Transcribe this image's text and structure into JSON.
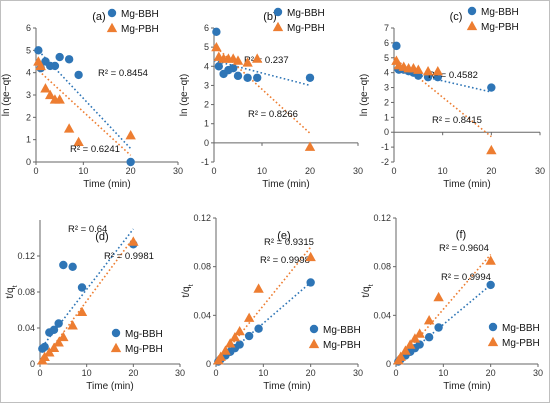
{
  "figure": {
    "colors": {
      "Mg-BBH": "#2E75B6",
      "Mg-PBH": "#ED7D31",
      "axis": "#666666",
      "frame": "#bfbfbf"
    }
  },
  "chart_data": [
    {
      "type": "scatter",
      "panel_label": "(a)",
      "xlabel": "Time (min)",
      "ylabel": "ln (qe−qt)",
      "xlim": [
        0,
        30
      ],
      "ylim": [
        0,
        6
      ],
      "xticks": [
        "0",
        "10",
        "20",
        "30"
      ],
      "yticks": [
        "0",
        "1",
        "2",
        "3",
        "4",
        "5",
        "6"
      ],
      "legend": "top-right",
      "series": [
        {
          "name": "Mg-BBH",
          "marker": "circle",
          "x": [
            0.5,
            1,
            2,
            3,
            4,
            5,
            7,
            9,
            20
          ],
          "y": [
            5.0,
            4.2,
            4.5,
            4.3,
            4.3,
            4.7,
            4.6,
            3.9,
            0.0
          ],
          "fit": [
            5.1,
            0.6
          ],
          "r2_label": "R² = 0.8454"
        },
        {
          "name": "Mg-PBH",
          "marker": "triangle",
          "x": [
            0.5,
            1,
            2,
            3,
            4,
            5,
            7,
            9,
            20
          ],
          "y": [
            4.5,
            4.3,
            3.3,
            3.0,
            2.8,
            2.8,
            1.5,
            0.9,
            1.2
          ],
          "fit": [
            4.2,
            0.3
          ],
          "r2_label": "R² = 0.6241"
        }
      ]
    },
    {
      "type": "scatter",
      "panel_label": "(b)",
      "xlabel": "Time (min)",
      "ylabel": "ln (qe−qt)",
      "xlim": [
        0,
        30
      ],
      "ylim": [
        -1,
        6
      ],
      "xticks": [
        "0",
        "10",
        "20",
        "30"
      ],
      "yticks": [
        "-1",
        "0",
        "1",
        "2",
        "3",
        "4",
        "5",
        "6"
      ],
      "legend": "top-right",
      "series": [
        {
          "name": "Mg-BBH",
          "marker": "circle",
          "x": [
            0.5,
            1,
            2,
            3,
            4,
            5,
            7,
            9,
            20
          ],
          "y": [
            5.8,
            4.0,
            3.6,
            3.8,
            3.9,
            3.5,
            3.4,
            3.4,
            3.4
          ],
          "fit": [
            4.3,
            3.0
          ],
          "r2_label": "R² = 0.237"
        },
        {
          "name": "Mg-PBH",
          "marker": "triangle",
          "x": [
            0.5,
            1,
            2,
            3,
            4,
            5,
            7,
            9,
            20
          ],
          "y": [
            5.0,
            4.5,
            4.4,
            4.4,
            4.4,
            4.3,
            4.2,
            4.4,
            -0.2
          ],
          "fit": [
            5.1,
            0.5
          ],
          "r2_label": "R² = 0.8266"
        }
      ]
    },
    {
      "type": "scatter",
      "panel_label": "(c)",
      "xlabel": "Time (min)",
      "ylabel": "ln (qe−qt)",
      "xlim": [
        0,
        30
      ],
      "ylim": [
        -2,
        7
      ],
      "xticks": [
        "0",
        "10",
        "20",
        "30"
      ],
      "yticks": [
        "-2",
        "-1",
        "0",
        "1",
        "2",
        "3",
        "4",
        "5",
        "6",
        "7"
      ],
      "legend": "top-right",
      "series": [
        {
          "name": "Mg-BBH",
          "marker": "circle",
          "x": [
            0.5,
            1,
            2,
            3,
            4,
            5,
            7,
            9,
            20
          ],
          "y": [
            5.8,
            4.2,
            4.2,
            4.1,
            4.0,
            3.8,
            3.7,
            3.7,
            3.0
          ],
          "fit": [
            4.2,
            2.7
          ],
          "r2_label": "R² = 0.4582"
        },
        {
          "name": "Mg-PBH",
          "marker": "triangle",
          "x": [
            0.5,
            1,
            2,
            3,
            4,
            5,
            7,
            9,
            20
          ],
          "y": [
            4.8,
            4.5,
            4.4,
            4.3,
            4.3,
            4.2,
            4.1,
            4.1,
            -1.2
          ],
          "fit": [
            5.0,
            -0.3
          ],
          "r2_label": "R² = 0.8415"
        }
      ]
    },
    {
      "type": "scatter",
      "panel_label": "(d)",
      "xlabel": "Time (min)",
      "ylabel": "t/q",
      "ylabel_sub": "t",
      "xlim": [
        0,
        30
      ],
      "ylim": [
        0,
        0.16
      ],
      "xticks": [
        "0",
        "10",
        "20",
        "30"
      ],
      "yticks": [
        "0",
        "0.04",
        "0.08",
        "0.12"
      ],
      "legend": "bottom-right",
      "series": [
        {
          "name": "Mg-BBH",
          "marker": "circle",
          "x": [
            0.5,
            1,
            2,
            3,
            4,
            5,
            7,
            9,
            20
          ],
          "y": [
            0.017,
            0.019,
            0.035,
            0.038,
            0.045,
            0.11,
            0.108,
            0.085,
            0.133
          ],
          "fit": [
            0.016,
            0.15
          ],
          "r2_label": "R² = 0.64"
        },
        {
          "name": "Mg-PBH",
          "marker": "triangle",
          "x": [
            0.5,
            1,
            2,
            3,
            4,
            5,
            7,
            9,
            20
          ],
          "y": [
            0.004,
            0.008,
            0.013,
            0.018,
            0.024,
            0.03,
            0.043,
            0.058,
            0.136
          ],
          "fit": [
            0.0,
            0.14
          ],
          "r2_label": "R² = 0.9981"
        }
      ]
    },
    {
      "type": "scatter",
      "panel_label": "(e)",
      "xlabel": "Time (min)",
      "ylabel": "t/q",
      "ylabel_sub": "t",
      "xlim": [
        0,
        30
      ],
      "ylim": [
        0,
        0.12
      ],
      "xticks": [
        "0",
        "10",
        "20",
        "30"
      ],
      "yticks": [
        "0",
        "0.04",
        "0.08",
        "0.12"
      ],
      "legend": "bottom-right",
      "series": [
        {
          "name": "Mg-BBH",
          "marker": "circle",
          "x": [
            0.5,
            1,
            2,
            3,
            4,
            5,
            7,
            9,
            20
          ],
          "y": [
            0.002,
            0.004,
            0.007,
            0.01,
            0.013,
            0.016,
            0.023,
            0.029,
            0.067
          ],
          "fit": [
            0.0,
            0.067
          ],
          "r2_label": "R² = 0.9998"
        },
        {
          "name": "Mg-PBH",
          "marker": "triangle",
          "x": [
            0.5,
            1,
            2,
            3,
            4,
            5,
            7,
            9,
            20
          ],
          "y": [
            0.003,
            0.006,
            0.011,
            0.017,
            0.022,
            0.027,
            0.038,
            0.062,
            0.088
          ],
          "fit": [
            0.0,
            0.096
          ],
          "r2_label": "R² = 0.9315"
        }
      ]
    },
    {
      "type": "scatter",
      "panel_label": "(f)",
      "xlabel": "Time (min)",
      "ylabel": "t/q",
      "ylabel_sub": "t",
      "xlim": [
        0,
        30
      ],
      "ylim": [
        0,
        0.12
      ],
      "xticks": [
        "0",
        "10",
        "20",
        "30"
      ],
      "yticks": [
        "0",
        "0.04",
        "0.08",
        "0.12"
      ],
      "legend": "bottom-right",
      "series": [
        {
          "name": "Mg-BBH",
          "marker": "circle",
          "x": [
            0.5,
            1,
            2,
            3,
            4,
            5,
            7,
            9,
            20
          ],
          "y": [
            0.002,
            0.004,
            0.007,
            0.01,
            0.013,
            0.016,
            0.022,
            0.03,
            0.065
          ],
          "fit": [
            0.0,
            0.065
          ],
          "r2_label": "R² = 0.9994"
        },
        {
          "name": "Mg-PBH",
          "marker": "triangle",
          "x": [
            0.5,
            1,
            2,
            3,
            4,
            5,
            7,
            9,
            20
          ],
          "y": [
            0.003,
            0.006,
            0.011,
            0.016,
            0.021,
            0.025,
            0.036,
            0.055,
            0.085
          ],
          "fit": [
            0.0,
            0.09
          ],
          "r2_label": "R² = 0.9604"
        }
      ]
    }
  ]
}
